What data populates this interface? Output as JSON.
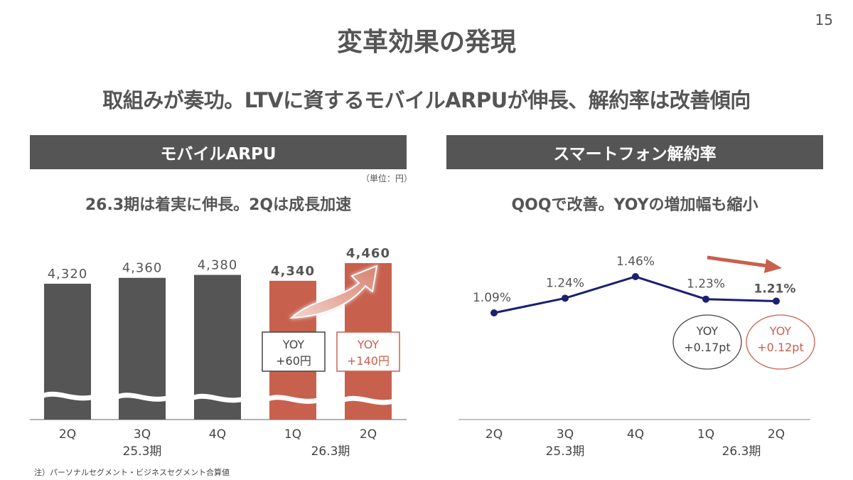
{
  "page_number": "15",
  "title": "変革効果の発現",
  "subtitle": "取組みが奏功。LTVに資するモバイルARPUが伸長、解約率は改善傾向",
  "footnote": "注）パーソナルセグメント・ビジネスセグメント合算値",
  "colors": {
    "dark_bar": "#555555",
    "accent": "#C8604E",
    "line": "#1B1F73",
    "header_bg": "#555555"
  },
  "chart_data": [
    {
      "type": "bar",
      "header": "モバイルARPU",
      "unit_label": "（単位：円）",
      "headline": "26.3期は着実に伸長。2Qは成長加速",
      "categories": [
        "2Q",
        "3Q",
        "4Q",
        "1Q",
        "2Q"
      ],
      "periods": [
        {
          "label": "25.3期",
          "categories": [
            0,
            1,
            2
          ]
        },
        {
          "label": "26.3期",
          "categories": [
            3,
            4
          ]
        }
      ],
      "values": [
        4320,
        4360,
        4380,
        4340,
        4460
      ],
      "value_labels": [
        "4,320",
        "4,360",
        "4,380",
        "4,340",
        "4,460"
      ],
      "highlight": [
        false,
        false,
        false,
        true,
        true
      ],
      "axis_break": true,
      "annotations": [
        {
          "line1": "YOY",
          "line2": "+60円",
          "category": 3,
          "style": "dark"
        },
        {
          "line1": "YOY",
          "line2": "+140円",
          "category": 4,
          "style": "accent"
        }
      ]
    },
    {
      "type": "line",
      "header": "スマートフォン解約率",
      "headline": "QOQで改善。YOYの増加幅も縮小",
      "categories": [
        "2Q",
        "3Q",
        "4Q",
        "1Q",
        "2Q"
      ],
      "periods": [
        {
          "label": "25.3期",
          "categories": [
            0,
            1,
            2
          ]
        },
        {
          "label": "26.3期",
          "categories": [
            3,
            4
          ]
        }
      ],
      "values": [
        1.09,
        1.24,
        1.46,
        1.23,
        1.21
      ],
      "value_labels": [
        "1.09%",
        "1.24%",
        "1.46%",
        "1.23%",
        "1.21%"
      ],
      "annotations": [
        {
          "line1": "YOY",
          "line2": "+0.17pt",
          "category": 3,
          "style": "dark"
        },
        {
          "line1": "YOY",
          "line2": "+0.12pt",
          "category": 4,
          "style": "accent"
        }
      ]
    }
  ]
}
